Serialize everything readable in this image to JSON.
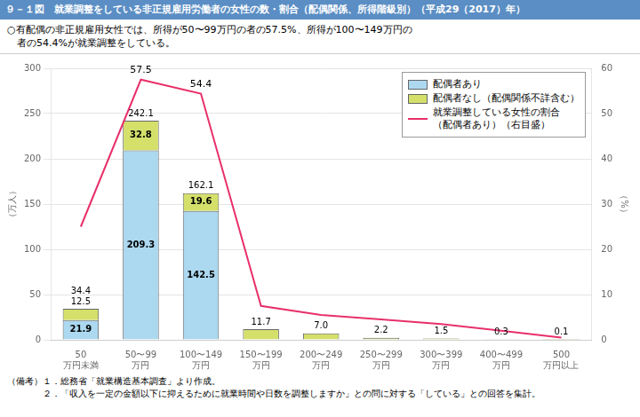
{
  "chart_data": {
    "type": "bar",
    "title": "９－１図　就業調整をしている非正規雇用労働者の女性の数・割合（配偶関係、所得階級別）（平成29（2017）年）",
    "subtitle": [
      "○有配偶の非正規雇用女性では、所得が50〜99万円の者の57.5%、所得が100〜149万円の",
      "　者の54.4%が就業調整をしている。"
    ],
    "notes": [
      "（備考）１．総務省「就業構造基本調査」より作成。",
      "　　　　２．「収入を一定の金額以下に抑えるために就業時間や日数を調整しますか」との問に対する「している」との回答を集計。"
    ],
    "categories": [
      "50\n万円未満",
      "50〜99\n万円",
      "100〜149\n万円",
      "150〜199\n万円",
      "200〜249\n万円",
      "250〜299\n万円",
      "300〜399\n万円",
      "400〜499\n万円",
      "500\n万円以上"
    ],
    "stacked": true,
    "series": [
      {
        "name": "配偶者あり",
        "color": "#acd8f0",
        "values": [
          21.9,
          209.3,
          142.5,
          0,
          0,
          0,
          0,
          0,
          0
        ],
        "value_labels": [
          "21.9",
          "209.3",
          "142.5",
          null,
          null,
          null,
          null,
          null,
          null
        ]
      },
      {
        "name": "配偶者なし（配偶関係不詳含む）",
        "color": "#d4e06a",
        "values": [
          12.5,
          32.8,
          19.6,
          11.7,
          7.0,
          2.2,
          1.5,
          0.3,
          0.1
        ],
        "value_labels": [
          "12.5",
          "32.8",
          "19.6",
          "11.7",
          "7.0",
          "2.2",
          "1.5",
          "0.3",
          "0.1"
        ]
      },
      {
        "name": "就業調整している女性の割合\n（配偶者あり）（右目盛）",
        "type": "line",
        "axis": "y2",
        "color": "#e8306a",
        "values": [
          25.0,
          57.5,
          54.4,
          7.5,
          5.5,
          4.5,
          3.5,
          2.0,
          0.5
        ],
        "value_labels": [
          null,
          "57.5",
          "54.4",
          null,
          null,
          null,
          null,
          null,
          null
        ]
      }
    ],
    "totals": [
      34.4,
      242.1,
      162.1,
      null,
      null,
      null,
      null,
      null,
      null
    ],
    "ylabel": "（万人）",
    "y2label": "（%）",
    "ylim": [
      0,
      300
    ],
    "yticks": [
      0,
      50,
      100,
      150,
      200,
      250,
      300
    ],
    "y2lim": [
      0,
      60
    ],
    "y2ticks": [
      0,
      10,
      20,
      30,
      40,
      50,
      60
    ],
    "grid": true,
    "legend": "upper right",
    "data_labels": true
  }
}
